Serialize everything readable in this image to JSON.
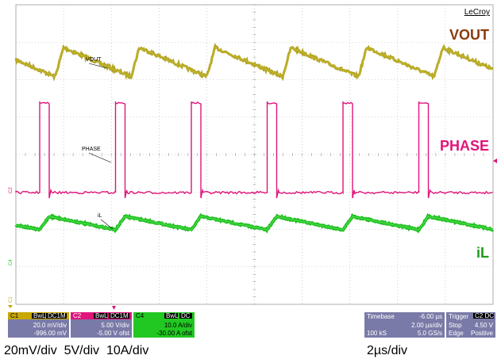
{
  "brand": "LeCroy",
  "labels": {
    "vout_big": "VOUT",
    "phase_big": "PHASE",
    "il_big": "iL",
    "vout_small": "VOUT",
    "phase_small": "PHASE",
    "il_small": "iL"
  },
  "channel_markers": {
    "c1": "C1",
    "c2": "C2",
    "c4": "C4"
  },
  "channels": [
    {
      "id": "C1",
      "tags": [
        "BwL",
        "DC1M"
      ],
      "scale": "20.0 mV/div",
      "offset": "-996.00 mV",
      "color": "#c8a800"
    },
    {
      "id": "C2",
      "tags": [
        "BwL",
        "DC1M"
      ],
      "scale": "5.00 V/div",
      "offset": "-5.00 V ofst",
      "color": "#e0147a"
    },
    {
      "id": "C4",
      "tags": [
        "BwL",
        "DC"
      ],
      "scale": "10.0 A/div",
      "offset": "-30.00 A ofst",
      "color": "#22c822"
    }
  ],
  "timebase": {
    "label": "Timebase",
    "delay": "-6.00 µs",
    "per_div": "2.00 µs/div",
    "samples": "100 kS",
    "rate": "5.0 GS/s"
  },
  "trigger": {
    "label": "Trigger",
    "source": "C2 DC",
    "mode": "Stop",
    "level": "4.50 V",
    "type": "Edge",
    "slope": "Positive"
  },
  "captions": {
    "scales": "20mV/div  5V/div  10A/div",
    "time": "2µs/div"
  },
  "colors": {
    "vout": "#a89a10",
    "phase": "#e0147a",
    "il": "#22c822",
    "vout_label": "#8b3a0e",
    "panel_bg": "#7a7aa8"
  }
}
